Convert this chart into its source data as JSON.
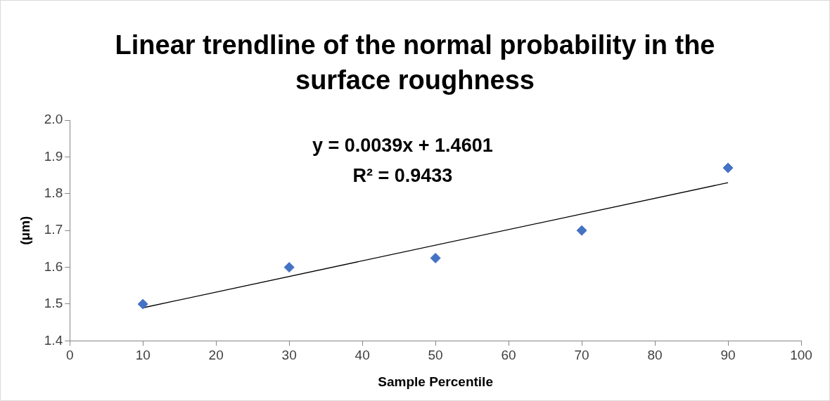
{
  "chart_data": {
    "type": "scatter",
    "title": "Linear trendline of the normal probability in the surface roughness",
    "xlabel": "Sample Percentile",
    "ylabel": "(μm)",
    "x": [
      10,
      30,
      50,
      70,
      90
    ],
    "series": [
      {
        "type": "scatter",
        "color": "#4472c4",
        "marker": "diamond",
        "values": [
          1.5,
          1.6,
          1.625,
          1.7,
          1.87
        ]
      },
      {
        "type": "line",
        "color": "#000000",
        "marker": "none",
        "x": [
          10,
          90
        ],
        "values": [
          1.49,
          1.83
        ]
      }
    ],
    "xlim": [
      0,
      100
    ],
    "xticks": [
      0,
      10,
      20,
      30,
      40,
      50,
      60,
      70,
      80,
      90,
      100
    ],
    "ylim": [
      1.4,
      2.0
    ],
    "yticks": [
      {
        "value": 1.4,
        "label": "1.4"
      },
      {
        "value": 1.5,
        "label": "1.5"
      },
      {
        "value": 1.6,
        "label": "1.6"
      },
      {
        "value": 1.7,
        "label": "1.7"
      },
      {
        "value": 1.8,
        "label": "1.8"
      },
      {
        "value": 1.9,
        "label": "1.9"
      },
      {
        "value": 2.0,
        "label": "2.0"
      }
    ],
    "grid": false,
    "legend": false,
    "annotations": [
      "y = 0.0039x + 1.4601",
      "R² = 0.9433"
    ]
  }
}
